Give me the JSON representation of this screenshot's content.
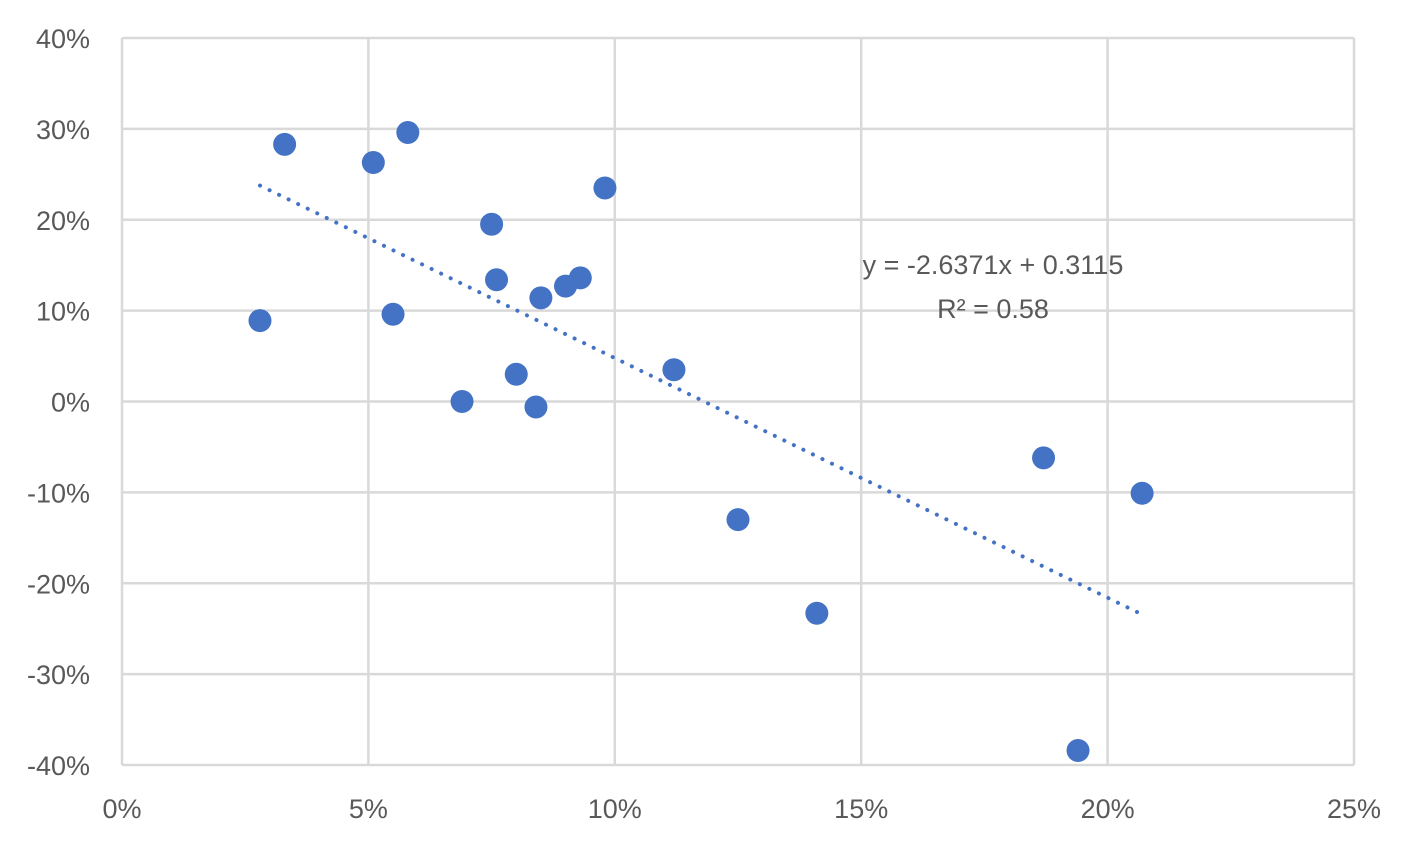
{
  "chart_data": {
    "type": "scatter",
    "title": "",
    "xlabel": "",
    "ylabel": "",
    "xlim": [
      0,
      0.25
    ],
    "ylim": [
      -0.4,
      0.4
    ],
    "x_ticks": [
      0,
      0.05,
      0.1,
      0.15,
      0.2,
      0.25
    ],
    "x_tick_labels": [
      "0%",
      "5%",
      "10%",
      "15%",
      "20%",
      "25%"
    ],
    "y_ticks": [
      0.4,
      0.3,
      0.2,
      0.1,
      0,
      -0.1,
      -0.2,
      -0.3,
      -0.4
    ],
    "y_tick_labels": [
      "40%",
      "30%",
      "20%",
      "10%",
      "0%",
      "-10%",
      "-20%",
      "-30%",
      "-40%"
    ],
    "grid": true,
    "legend": "none",
    "marker_color": "#4472c4",
    "gridline_color": "#d9d9d9",
    "text_color": "#595959",
    "series": [
      {
        "points": [
          {
            "x": 0.028,
            "y": 0.089
          },
          {
            "x": 0.033,
            "y": 0.283
          },
          {
            "x": 0.051,
            "y": 0.263
          },
          {
            "x": 0.055,
            "y": 0.096
          },
          {
            "x": 0.058,
            "y": 0.296
          },
          {
            "x": 0.069,
            "y": 0.0
          },
          {
            "x": 0.075,
            "y": 0.195
          },
          {
            "x": 0.076,
            "y": 0.134
          },
          {
            "x": 0.08,
            "y": 0.03
          },
          {
            "x": 0.084,
            "y": -0.006
          },
          {
            "x": 0.085,
            "y": 0.114
          },
          {
            "x": 0.09,
            "y": 0.127
          },
          {
            "x": 0.093,
            "y": 0.136
          },
          {
            "x": 0.098,
            "y": 0.235
          },
          {
            "x": 0.112,
            "y": 0.035
          },
          {
            "x": 0.125,
            "y": -0.13
          },
          {
            "x": 0.141,
            "y": -0.233
          },
          {
            "x": 0.187,
            "y": -0.062
          },
          {
            "x": 0.194,
            "y": -0.384
          },
          {
            "x": 0.207,
            "y": -0.101
          }
        ]
      }
    ],
    "trendline": {
      "type": "linear",
      "slope": -2.6371,
      "intercept": 0.3115,
      "x_start": 0.028,
      "x_end": 0.207,
      "style": "dotted",
      "equation_label": "y = -2.6371x + 0.3115",
      "r2_label": "R² = 0.58"
    }
  }
}
